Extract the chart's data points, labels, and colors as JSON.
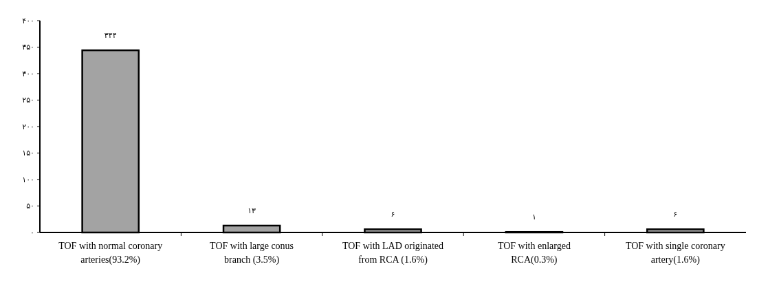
{
  "chart_data": {
    "type": "bar",
    "categories": [
      "TOF with normal coronary arteries(93.2%)",
      "TOF with large conus branch (3.5%)",
      "TOF with LAD originated from RCA (1.6%)",
      "TOF with enlarged RCA(0.3%)",
      "TOF with single coronary artery(1.6%)"
    ],
    "values": [
      344,
      13,
      6,
      1,
      6
    ],
    "value_labels": [
      "۳۴۴",
      "۱۳",
      "۶",
      "۱",
      "۶"
    ],
    "color": "#a3a3a3",
    "ylim": [
      0,
      400
    ],
    "yticks": [
      {
        "value": 0,
        "label": "۰"
      },
      {
        "value": 50,
        "label": "۵۰"
      },
      {
        "value": 100,
        "label": "۱۰۰"
      },
      {
        "value": 150,
        "label": "۱۵۰"
      },
      {
        "value": 200,
        "label": "۲۰۰"
      },
      {
        "value": 250,
        "label": "۲۵۰"
      },
      {
        "value": 300,
        "label": "۳۰۰"
      },
      {
        "value": 350,
        "label": "۳۵۰"
      },
      {
        "value": 400,
        "label": "۴۰۰"
      }
    ],
    "grid": false
  }
}
